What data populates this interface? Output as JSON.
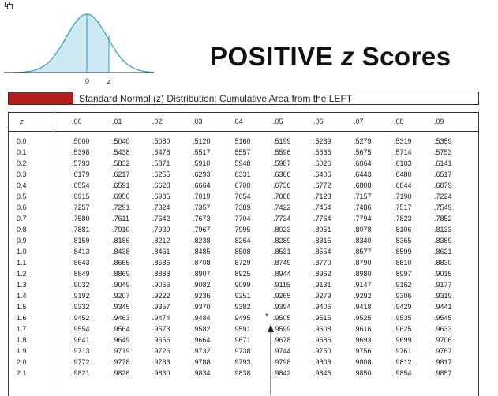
{
  "title": {
    "main": "POSITIVE",
    "variable": "z",
    "suffix": "Scores"
  },
  "caption": "Standard Normal (z) Distribution: Cumulative Area from the LEFT",
  "curve": {
    "label_zero": "0",
    "label_z": "z",
    "fill_color": "#cde9f2",
    "line_color": "#2a9cc4"
  },
  "colors": {
    "accent_block": "#b71c1c"
  },
  "table": {
    "corner_label": "z",
    "columns": [
      ".00",
      ".01",
      ".02",
      ".03",
      ".04",
      ".05",
      ".06",
      ".07",
      ".08",
      ".09"
    ],
    "rows": [
      {
        "z": "0.0",
        "values": [
          ".5000",
          ".5040",
          ".5080",
          ".5120",
          ".5160",
          ".5199",
          ".5239",
          ".5279",
          ".5319",
          ".5359"
        ]
      },
      {
        "z": "0.1",
        "values": [
          ".5398",
          ".5438",
          ".5478",
          ".5517",
          ".5557",
          ".5596",
          ".5636",
          ".5675",
          ".5714",
          ".5753"
        ]
      },
      {
        "z": "0.2",
        "values": [
          ".5793",
          ".5832",
          ".5871",
          ".5910",
          ".5948",
          ".5987",
          ".6026",
          ".6064",
          ".6103",
          ".6141"
        ]
      },
      {
        "z": "0.3",
        "values": [
          ".6179",
          ".6217",
          ".6255",
          ".6293",
          ".6331",
          ".6368",
          ".6406",
          ".6443",
          ".6480",
          ".6517"
        ]
      },
      {
        "z": "0.4",
        "values": [
          ".6554",
          ".6591",
          ".6628",
          ".6664",
          ".6700",
          ".6736",
          ".6772",
          ".6808",
          ".6844",
          ".6879"
        ]
      },
      {
        "z": "0.5",
        "values": [
          ".6915",
          ".6950",
          ".6985",
          ".7019",
          ".7054",
          ".7088",
          ".7123",
          ".7157",
          ".7190",
          ".7224"
        ]
      },
      {
        "z": "0.6",
        "values": [
          ".7257",
          ".7291",
          ".7324",
          ".7357",
          ".7389",
          ".7422",
          ".7454",
          ".7486",
          ".7517",
          ".7549"
        ]
      },
      {
        "z": "0.7",
        "values": [
          ".7580",
          ".7611",
          ".7642",
          ".7673",
          ".7704",
          ".7734",
          ".7764",
          ".7794",
          ".7823",
          ".7852"
        ]
      },
      {
        "z": "0.8",
        "values": [
          ".7881",
          ".7910",
          ".7939",
          ".7967",
          ".7995",
          ".8023",
          ".8051",
          ".8078",
          ".8106",
          ".8133"
        ]
      },
      {
        "z": "0.9",
        "values": [
          ".8159",
          ".8186",
          ".8212",
          ".8238",
          ".8264",
          ".8289",
          ".8315",
          ".8340",
          ".8365",
          ".8389"
        ]
      },
      {
        "z": "1.0",
        "values": [
          ".8413",
          ".8438",
          ".8461",
          ".8485",
          ".8508",
          ".8531",
          ".8554",
          ".8577",
          ".8599",
          ".8621"
        ]
      },
      {
        "z": "1.1",
        "values": [
          ".8643",
          ".8665",
          ".8686",
          ".8708",
          ".8729",
          ".8749",
          ".8770",
          ".8790",
          ".8810",
          ".8830"
        ]
      },
      {
        "z": "1.2",
        "values": [
          ".8849",
          ".8869",
          ".8888",
          ".8907",
          ".8925",
          ".8944",
          ".8962",
          ".8980",
          ".8997",
          ".9015"
        ]
      },
      {
        "z": "1.3",
        "values": [
          ".9032",
          ".9049",
          ".9066",
          ".9082",
          ".9099",
          ".9115",
          ".9131",
          ".9147",
          ".9162",
          ".9177"
        ]
      },
      {
        "z": "1.4",
        "values": [
          ".9192",
          ".9207",
          ".9222",
          ".9236",
          ".9251",
          ".9265",
          ".9279",
          ".9292",
          ".9306",
          ".9319"
        ]
      },
      {
        "z": "1.5",
        "values": [
          ".9332",
          ".9345",
          ".9357",
          ".9370",
          ".9382",
          ".9394",
          ".9406",
          ".9418",
          ".9429",
          ".9441"
        ]
      },
      {
        "z": "1.6",
        "values": [
          ".9452",
          ".9463",
          ".9474",
          ".9484",
          ".9495",
          ".9505",
          ".9515",
          ".9525",
          ".9535",
          ".9545"
        ]
      },
      {
        "z": "1.7",
        "values": [
          ".9554",
          ".9564",
          ".9573",
          ".9582",
          ".9591",
          ".9599",
          ".9608",
          ".9616",
          ".9625",
          ".9633"
        ]
      },
      {
        "z": "1.8",
        "values": [
          ".9641",
          ".9649",
          ".9656",
          ".9664",
          ".9671",
          ".9678",
          ".9686",
          ".9693",
          ".9699",
          ".9706"
        ]
      },
      {
        "z": "1.9",
        "values": [
          ".9713",
          ".9719",
          ".9726",
          ".9732",
          ".9738",
          ".9744",
          ".9750",
          ".9756",
          ".9761",
          ".9767"
        ]
      },
      {
        "z": "2.0",
        "values": [
          ".9772",
          ".9778",
          ".9783",
          ".9788",
          ".9793",
          ".9798",
          ".9803",
          ".9808",
          ".9812",
          ".9817"
        ]
      },
      {
        "z": "2.1",
        "values": [
          ".9821",
          ".9826",
          ".9830",
          ".9834",
          ".9838",
          ".9842",
          ".9846",
          ".9850",
          ".9854",
          ".9857"
        ]
      }
    ],
    "marker_symbol": "*"
  }
}
